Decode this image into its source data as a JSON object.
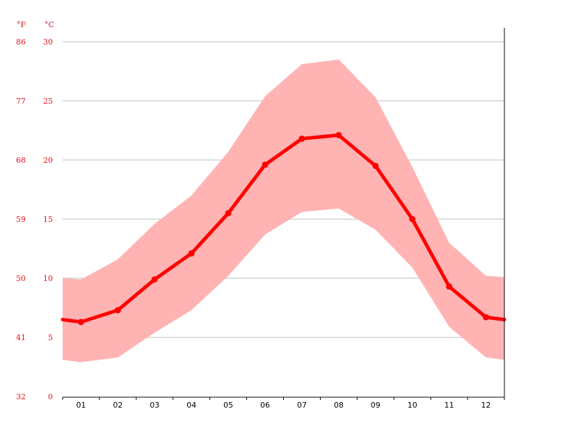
{
  "chart_data": {
    "type": "line",
    "units": {
      "fahrenheit": "°F",
      "celsius": "°C"
    },
    "categories": [
      "01",
      "02",
      "03",
      "04",
      "05",
      "06",
      "07",
      "08",
      "09",
      "10",
      "11",
      "12"
    ],
    "series": [
      {
        "values": [
          6.3,
          7.3,
          9.9,
          12.1,
          15.5,
          19.6,
          21.8,
          22.1,
          19.5,
          15.0,
          9.3,
          6.7
        ]
      }
    ],
    "band": {
      "min": [
        2.9,
        3.3,
        5.4,
        7.3,
        10.2,
        13.7,
        15.6,
        15.9,
        14.1,
        10.9,
        5.9,
        3.3
      ],
      "max": [
        9.9,
        11.6,
        14.6,
        17.0,
        20.7,
        25.4,
        28.1,
        28.5,
        25.3,
        19.4,
        13.0,
        10.2
      ]
    },
    "edge_values": {
      "line": [
        6.5,
        6.5
      ],
      "min": [
        3.1,
        3.1
      ],
      "max": [
        10.0,
        10.1
      ]
    },
    "y_celsius_ticks": [
      "0",
      "5",
      "10",
      "15",
      "20",
      "25",
      "30"
    ],
    "y_fahrenheit_ticks": [
      "32",
      "41",
      "50",
      "59",
      "68",
      "77",
      "86"
    ],
    "ylim": [
      0,
      30
    ],
    "colors": {
      "line": "#ff0000",
      "band": "#ffb3b3",
      "tick_text": "#e8121b",
      "grid": "#bdbdbd"
    },
    "grid": true
  }
}
